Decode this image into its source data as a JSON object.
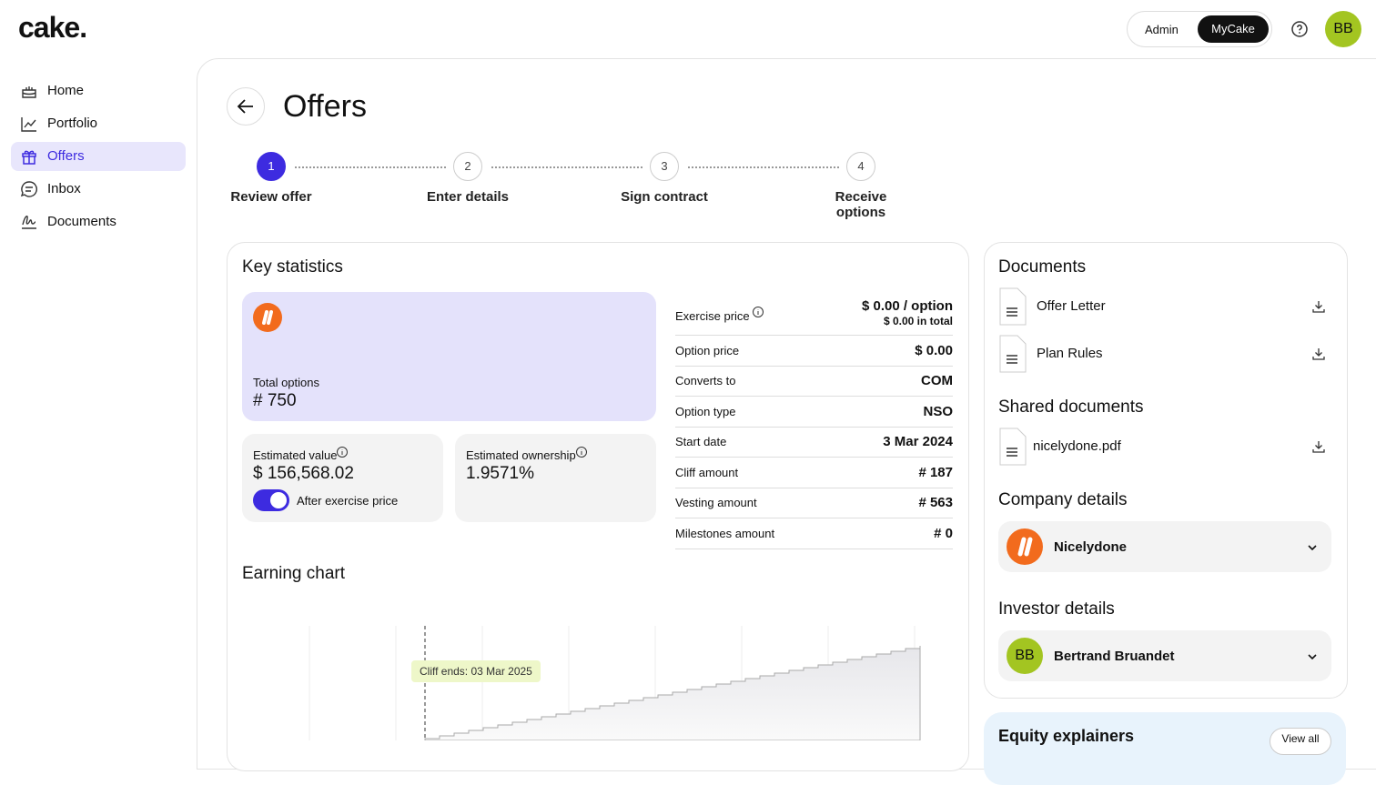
{
  "logo": "cake.",
  "header": {
    "toggle": [
      "Admin",
      "MyCake"
    ],
    "avatar": "BB"
  },
  "nav": [
    "Home",
    "Portfolio",
    "Offers",
    "Inbox",
    "Documents"
  ],
  "page": {
    "title": "Offers"
  },
  "steps": [
    {
      "number": 1,
      "label": "Review offer"
    },
    {
      "number": 2,
      "label": "Enter details"
    },
    {
      "number": 3,
      "label": "Sign contract"
    },
    {
      "number": 4,
      "label": "Receive options"
    }
  ],
  "key_statistics": {
    "title": "Key statistics",
    "total_options": {
      "label": "Total options",
      "value": "# 750"
    },
    "estimated_value": {
      "label": "Estimated value",
      "value": "$ 156,568.02",
      "toggle": "After exercise price"
    },
    "estimated_ownership": {
      "label": "Estimated ownership",
      "value": "1.9571%"
    },
    "rows": [
      [
        "Exercise price",
        "$ 0.00 / option",
        "$ 0.00 in total"
      ],
      [
        "Option price",
        "$ 0.00"
      ],
      [
        "Converts to",
        "COM"
      ],
      [
        "Option type",
        "NSO"
      ],
      [
        "Start date",
        "3 Mar 2024"
      ],
      [
        "Cliff amount",
        "# 187"
      ],
      [
        "Vesting amount",
        "# 563"
      ],
      [
        "Milestones amount",
        "# 0"
      ]
    ]
  },
  "earning_chart": {
    "title": "Earning chart",
    "annotation": "Cliff ends: 03 Mar 2025"
  },
  "documents": {
    "title": "Documents",
    "files": [
      "Offer Letter",
      "Plan Rules"
    ]
  },
  "shared_documents": {
    "title": "Shared documents",
    "files": [
      "nicelydone.pdf"
    ]
  },
  "company_details": {
    "title": "Company details",
    "name": "Nicelydone"
  },
  "investor_details": {
    "title": "Investor details",
    "initials": "BB",
    "name": "Bertrand Bruandet"
  },
  "equity_explainers": {
    "title": "Equity explainers",
    "button": "View all"
  }
}
